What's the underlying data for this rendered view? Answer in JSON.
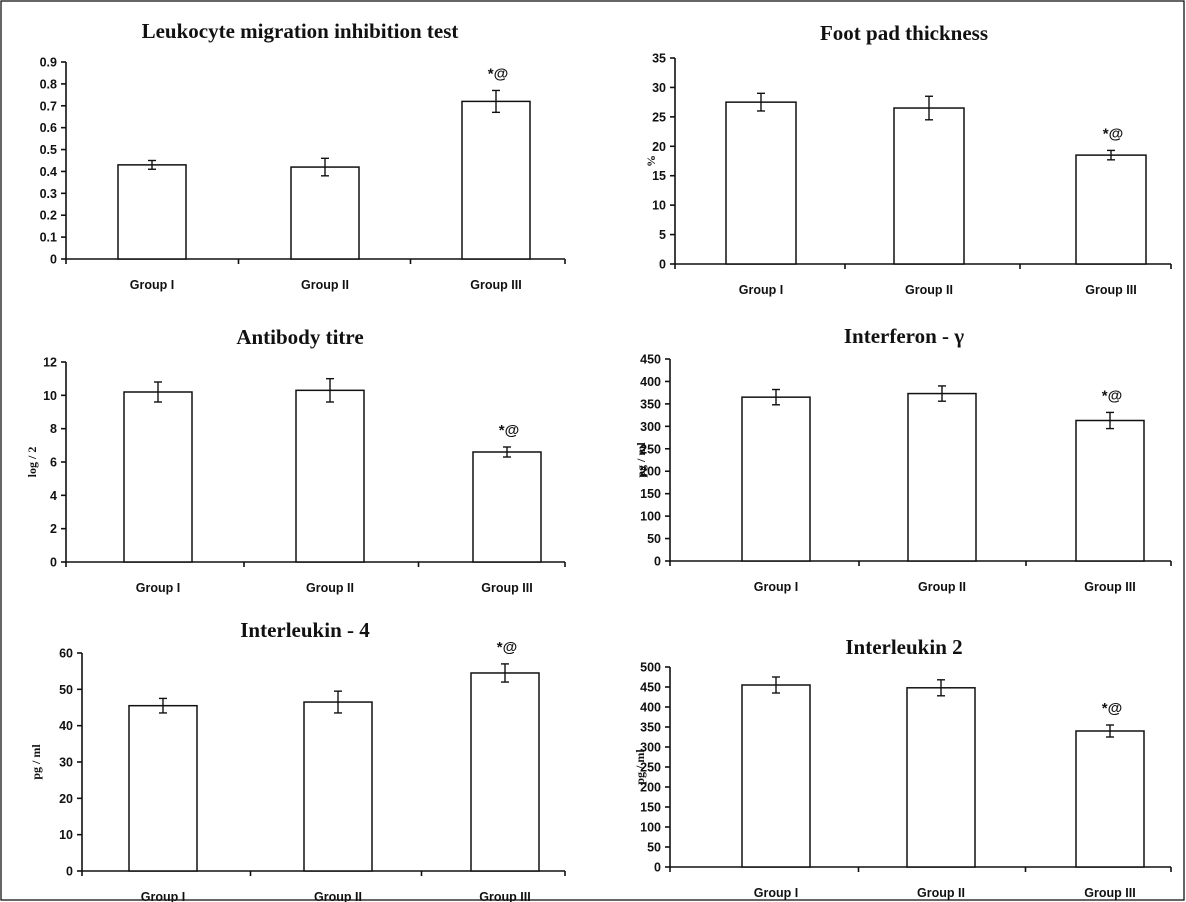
{
  "chart_data": [
    {
      "type": "bar",
      "title": "Leukocyte migration inhibition test",
      "ylabel": "",
      "categories": [
        "Group I",
        "Group II",
        "Group III"
      ],
      "values": [
        0.43,
        0.42,
        0.72
      ],
      "errors": [
        0.02,
        0.04,
        0.05
      ],
      "ylim": [
        0,
        0.9
      ],
      "yticks": [
        "0",
        "0.1",
        "0.2",
        "0.3",
        "0.4",
        "0.5",
        "0.6",
        "0.7",
        "0.8",
        "0.9"
      ],
      "annotations": [
        "",
        "",
        "*@"
      ]
    },
    {
      "type": "bar",
      "title": "Foot pad thickness",
      "ylabel": "%",
      "categories": [
        "Group I",
        "Group II",
        "Group III"
      ],
      "values": [
        27.5,
        26.5,
        18.5
      ],
      "errors": [
        1.5,
        2.0,
        0.8
      ],
      "ylim": [
        0,
        35
      ],
      "yticks": [
        "0",
        "5",
        "10",
        "15",
        "20",
        "25",
        "30",
        "35"
      ],
      "annotations": [
        "",
        "",
        "*@"
      ]
    },
    {
      "type": "bar",
      "title": "Antibody titre",
      "ylabel": "log / 2",
      "categories": [
        "Group I",
        "Group II",
        "Group III"
      ],
      "values": [
        10.2,
        10.3,
        6.6
      ],
      "errors": [
        0.6,
        0.7,
        0.3
      ],
      "ylim": [
        0,
        12
      ],
      "yticks": [
        "0",
        "2",
        "4",
        "6",
        "8",
        "10",
        "12"
      ],
      "annotations": [
        "",
        "",
        "*@"
      ]
    },
    {
      "type": "bar",
      "title": "Interferon - γ",
      "ylabel": "pg / ml",
      "categories": [
        "Group I",
        "Group II",
        "Group III"
      ],
      "values": [
        365,
        373,
        313
      ],
      "errors": [
        17,
        17,
        18
      ],
      "ylim": [
        0,
        450
      ],
      "yticks": [
        "0",
        "50",
        "100",
        "150",
        "200",
        "250",
        "300",
        "350",
        "400",
        "450"
      ],
      "annotations": [
        "",
        "",
        "*@"
      ]
    },
    {
      "type": "bar",
      "title": "Interleukin - 4",
      "ylabel": "pg / ml",
      "categories": [
        "Group I",
        "Group II",
        "Group III"
      ],
      "values": [
        45.5,
        46.5,
        54.5
      ],
      "errors": [
        2.0,
        3.0,
        2.5
      ],
      "ylim": [
        0,
        60
      ],
      "yticks": [
        "0",
        "10",
        "20",
        "30",
        "40",
        "50",
        "60"
      ],
      "annotations": [
        "",
        "",
        "*@"
      ]
    },
    {
      "type": "bar",
      "title": "Interleukin 2",
      "ylabel": "pg / ml",
      "categories": [
        "Group I",
        "Group II",
        "Group III"
      ],
      "values": [
        455,
        448,
        340
      ],
      "errors": [
        20,
        20,
        15
      ],
      "ylim": [
        0,
        500
      ],
      "yticks": [
        "0",
        "50",
        "100",
        "150",
        "200",
        "250",
        "300",
        "350",
        "400",
        "450",
        "500"
      ],
      "annotations": [
        "",
        "",
        "*@"
      ]
    }
  ]
}
